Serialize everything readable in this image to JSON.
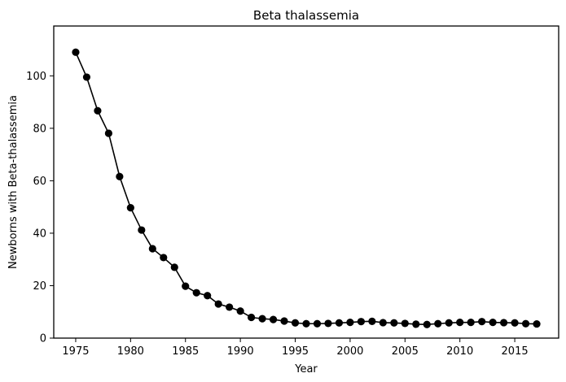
{
  "chart_data": {
    "type": "line",
    "title": "Beta thalassemia",
    "xlabel": "Year",
    "ylabel": "Newborns with Beta-thalassemia",
    "xlim": [
      1973,
      2019
    ],
    "ylim": [
      0,
      119
    ],
    "xticks": [
      1975,
      1980,
      1985,
      1990,
      1995,
      2000,
      2005,
      2010,
      2015
    ],
    "yticks": [
      0,
      20,
      40,
      60,
      80,
      100
    ],
    "grid": false,
    "legend": "none",
    "series": [
      {
        "color": "#000000",
        "marker": "circle",
        "x": [
          1975,
          1976,
          1977,
          1978,
          1979,
          1980,
          1981,
          1982,
          1983,
          1984,
          1985,
          1986,
          1987,
          1988,
          1989,
          1990,
          1991,
          1992,
          1993,
          1994,
          1995,
          1996,
          1997,
          1998,
          1999,
          2000,
          2001,
          2002,
          2003,
          2004,
          2005,
          2006,
          2007,
          2008,
          2009,
          2010,
          2011,
          2012,
          2013,
          2014,
          2015,
          2016,
          2017
        ],
        "y": [
          109,
          99.5,
          86.7,
          78.1,
          61.6,
          49.7,
          41.2,
          34.1,
          30.7,
          27.0,
          19.8,
          17.3,
          16.2,
          13.0,
          11.8,
          10.3,
          7.9,
          7.4,
          7.1,
          6.5,
          5.8,
          5.5,
          5.5,
          5.6,
          5.8,
          6.0,
          6.3,
          6.4,
          5.9,
          5.8,
          5.6,
          5.3,
          5.2,
          5.5,
          5.8,
          6.0,
          6.0,
          6.3,
          6.0,
          5.9,
          5.8,
          5.5,
          5.4
        ]
      }
    ]
  }
}
